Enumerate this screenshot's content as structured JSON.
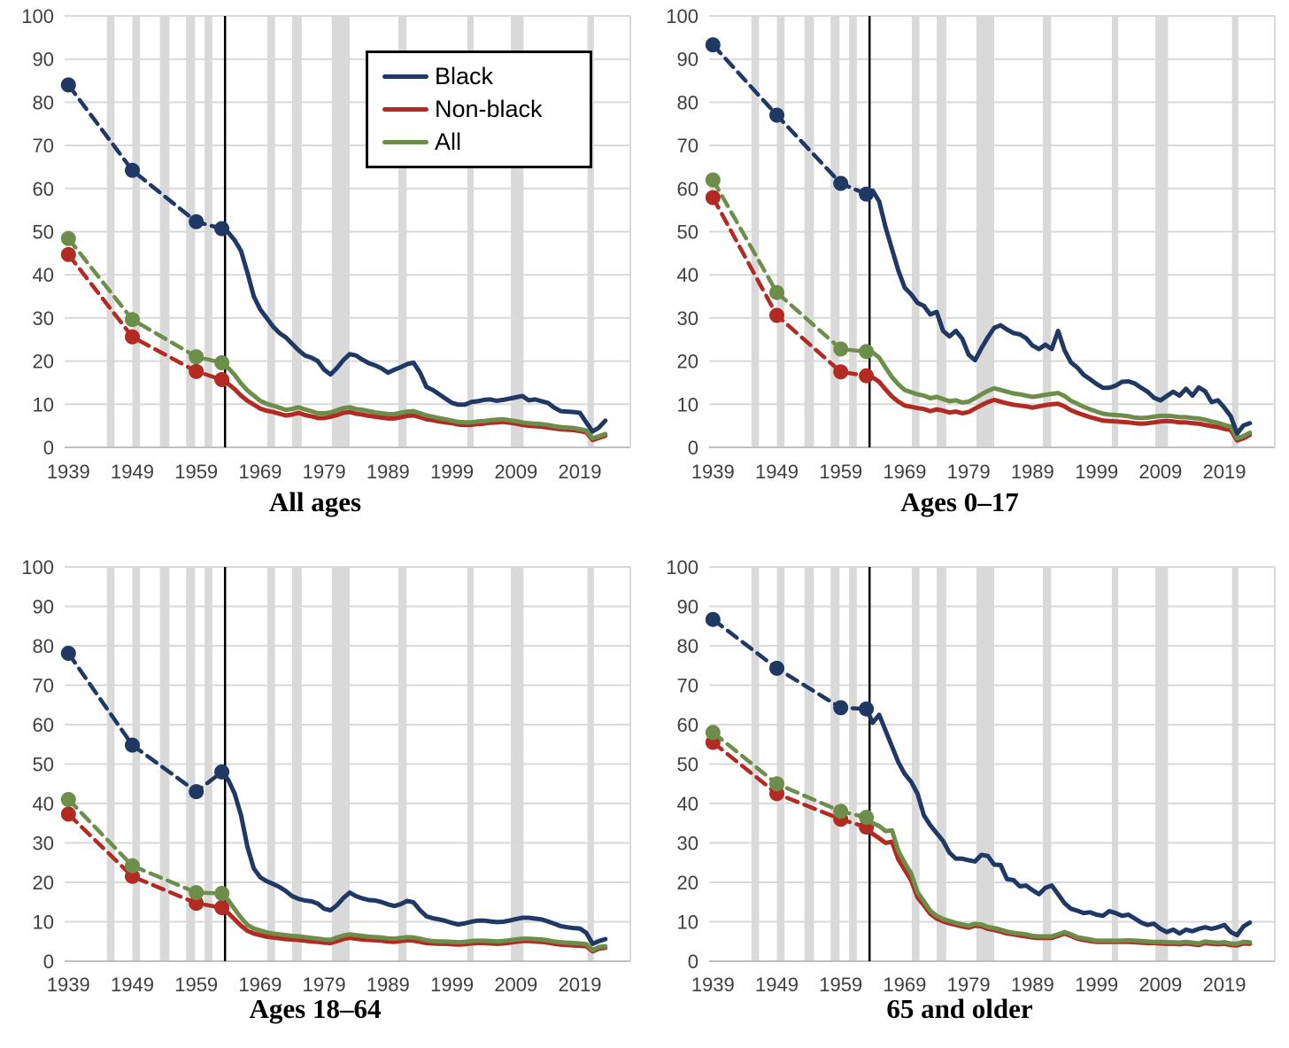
{
  "figure": {
    "background": "#ffffff"
  },
  "legend": {
    "items": [
      {
        "label": "Black",
        "series_key": "black",
        "color": "#1f3864"
      },
      {
        "label": "Non-black",
        "series_key": "nonblack",
        "color": "#b22a22"
      },
      {
        "label": "All",
        "series_key": "all",
        "color": "#6d8e4b"
      }
    ]
  },
  "chart_data": {
    "type": "line",
    "title": "",
    "xlabel": "",
    "ylabel": "",
    "x_domain": [
      1938.4,
      2026.9
    ],
    "y_domain": [
      0,
      100
    ],
    "x_ticks": [
      1939,
      1949,
      1959,
      1969,
      1979,
      1989,
      1999,
      2009,
      2019
    ],
    "y_ticks": [
      0,
      10,
      20,
      30,
      40,
      50,
      60,
      70,
      80,
      90,
      100
    ],
    "grid": true,
    "legend_position": "top-left panel, inside plot",
    "event_line_year": 1963.5,
    "recession_bands": [
      [
        1945.0,
        1946.2
      ],
      [
        1949.0,
        1950.2
      ],
      [
        1953.3,
        1954.8
      ],
      [
        1957.4,
        1958.8
      ],
      [
        1960.3,
        1961.5
      ],
      [
        1970.1,
        1971.3
      ],
      [
        1974.0,
        1975.5
      ],
      [
        1980.2,
        1983.0
      ],
      [
        1990.6,
        1991.9
      ],
      [
        2001.4,
        2002.4
      ],
      [
        2008.2,
        2010.2
      ],
      [
        2020.2,
        2021.2
      ]
    ],
    "census_years": [
      1939,
      1949,
      1959,
      1963
    ],
    "annual_start_year": 1963,
    "series_colors": {
      "black": "#1f3864",
      "nonblack": "#b22a22",
      "all": "#6d8e4b"
    },
    "style": {
      "grid_color": "#d9d9d9",
      "band_color": "#d9d9d9",
      "axis_line_color": "#bfbfbf",
      "event_line_color": "#000000"
    },
    "panels": [
      {
        "title": "All ages",
        "series": [
          {
            "name": "Black",
            "key": "black",
            "census": [
              84.0,
              64.2,
              52.3,
              50.7
            ],
            "annual": [
              50.7,
              49.8,
              48.0,
              45.5,
              40.5,
              35.0,
              32.0,
              30.0,
              28.0,
              26.5,
              25.5,
              24.0,
              22.5,
              21.3,
              20.8,
              20.0,
              18.0,
              16.9,
              18.4,
              20.2,
              21.6,
              21.3,
              20.3,
              19.5,
              19.0,
              18.3,
              17.3,
              18.0,
              18.6,
              19.3,
              19.6,
              17.3,
              14.0,
              13.3,
              12.3,
              11.3,
              10.3,
              9.9,
              9.9,
              10.5,
              10.7,
              11.0,
              11.1,
              10.8,
              11.0,
              11.3,
              11.6,
              11.9,
              10.9,
              11.1,
              10.7,
              10.3,
              9.2,
              8.4,
              8.3,
              8.2,
              8.0,
              5.8,
              3.7,
              4.6,
              6.2
            ]
          },
          {
            "name": "Non-black",
            "key": "nonblack",
            "census": [
              44.7,
              25.6,
              17.6,
              15.7
            ],
            "annual": [
              15.7,
              14.7,
              13.5,
              12.0,
              10.8,
              9.9,
              9.0,
              8.5,
              8.2,
              7.8,
              7.4,
              7.6,
              8.0,
              7.5,
              7.2,
              6.8,
              6.8,
              7.1,
              7.5,
              8.0,
              8.2,
              7.8,
              7.6,
              7.3,
              7.1,
              6.9,
              6.7,
              6.7,
              7.0,
              7.3,
              7.4,
              7.0,
              6.5,
              6.3,
              6.0,
              5.8,
              5.6,
              5.3,
              5.2,
              5.2,
              5.4,
              5.5,
              5.7,
              5.8,
              5.9,
              5.7,
              5.5,
              5.2,
              5.0,
              4.9,
              4.8,
              4.6,
              4.4,
              4.2,
              4.1,
              4.0,
              3.8,
              3.5,
              1.7,
              2.2,
              2.7
            ]
          },
          {
            "name": "All",
            "key": "all",
            "census": [
              48.4,
              29.6,
              21.0,
              19.6
            ],
            "annual": [
              19.6,
              18.4,
              16.8,
              14.8,
              13.2,
              12.0,
              10.8,
              10.1,
              9.7,
              9.2,
              8.7,
              8.9,
              9.3,
              8.8,
              8.4,
              7.9,
              7.9,
              8.1,
              8.6,
              9.1,
              9.3,
              8.9,
              8.7,
              8.4,
              8.1,
              7.9,
              7.7,
              7.7,
              8.0,
              8.3,
              8.4,
              7.9,
              7.4,
              7.1,
              6.8,
              6.5,
              6.2,
              5.9,
              5.8,
              5.8,
              6.0,
              6.1,
              6.3,
              6.4,
              6.5,
              6.3,
              6.1,
              5.8,
              5.6,
              5.5,
              5.4,
              5.2,
              4.9,
              4.7,
              4.6,
              4.5,
              4.2,
              3.9,
              2.1,
              2.6,
              3.1
            ]
          }
        ]
      },
      {
        "title": "Ages 0–17",
        "series": [
          {
            "name": "Black",
            "key": "black",
            "census": [
              93.3,
              77.0,
              61.2,
              58.7
            ],
            "annual": [
              58.7,
              59.5,
              57.0,
              51.0,
              46.0,
              41.0,
              37.0,
              35.5,
              33.5,
              32.8,
              30.8,
              31.4,
              27.0,
              25.7,
              27.0,
              25.2,
              21.5,
              20.2,
              23.0,
              25.5,
              27.7,
              28.3,
              27.3,
              26.5,
              26.2,
              25.3,
              23.6,
              22.8,
              23.8,
              22.8,
              27.0,
              22.5,
              19.7,
              18.5,
              16.8,
              15.8,
              14.7,
              13.8,
              13.8,
              14.3,
              15.2,
              15.3,
              14.8,
              13.8,
              12.9,
              11.5,
              10.9,
              11.9,
              12.9,
              12.0,
              13.6,
              12.0,
              13.9,
              13.0,
              10.5,
              10.9,
              9.2,
              7.2,
              3.2,
              5.1,
              5.6
            ]
          },
          {
            "name": "Non-black",
            "key": "nonblack",
            "census": [
              57.9,
              30.6,
              17.5,
              16.6
            ],
            "annual": [
              16.6,
              16.2,
              15.2,
              13.4,
              11.8,
              10.6,
              9.7,
              9.4,
              9.1,
              8.9,
              8.4,
              8.8,
              8.5,
              8.1,
              8.3,
              7.9,
              8.2,
              9.0,
              9.8,
              10.5,
              11.0,
              10.6,
              10.2,
              9.9,
              9.7,
              9.5,
              9.2,
              9.5,
              9.8,
              10.0,
              10.1,
              9.5,
              8.6,
              8.0,
              7.5,
              7.0,
              6.6,
              6.2,
              6.1,
              6.0,
              5.9,
              5.8,
              5.6,
              5.5,
              5.6,
              5.8,
              6.0,
              6.1,
              6.0,
              5.8,
              5.8,
              5.6,
              5.5,
              5.2,
              4.9,
              4.7,
              4.3,
              4.0,
              1.6,
              2.1,
              2.9
            ]
          },
          {
            "name": "All",
            "key": "all",
            "census": [
              62.0,
              35.9,
              22.8,
              22.2
            ],
            "annual": [
              22.2,
              22.0,
              20.8,
              18.5,
              16.3,
              14.6,
              13.3,
              12.8,
              12.3,
              12.0,
              11.4,
              11.7,
              11.2,
              10.7,
              10.9,
              10.4,
              10.6,
              11.4,
              12.3,
              13.1,
              13.7,
              13.3,
              12.9,
              12.5,
              12.3,
              12.0,
              11.7,
              11.9,
              12.2,
              12.4,
              12.6,
              11.9,
              10.8,
              10.1,
              9.4,
              8.8,
              8.3,
              7.8,
              7.6,
              7.5,
              7.4,
              7.2,
              6.9,
              6.8,
              6.9,
              7.1,
              7.3,
              7.3,
              7.2,
              7.0,
              7.0,
              6.8,
              6.7,
              6.4,
              6.0,
              5.7,
              5.2,
              4.8,
              2.1,
              2.6,
              3.4
            ]
          }
        ]
      },
      {
        "title": "Ages 18–64",
        "series": [
          {
            "name": "Black",
            "key": "black",
            "census": [
              78.1,
              54.8,
              43.0,
              48.0
            ],
            "annual": [
              48.0,
              46.0,
              42.5,
              37.0,
              29.0,
              23.5,
              21.3,
              20.3,
              19.6,
              18.8,
              17.8,
              16.5,
              15.8,
              15.4,
              15.2,
              14.6,
              13.3,
              12.9,
              14.2,
              16.0,
              17.4,
              16.5,
              15.9,
              15.5,
              15.4,
              15.0,
              14.4,
              14.0,
              14.5,
              15.3,
              14.9,
              12.9,
              11.4,
              10.9,
              10.6,
              10.2,
              9.7,
              9.3,
              9.6,
              10.0,
              10.3,
              10.3,
              10.1,
              9.9,
              10.0,
              10.3,
              10.7,
              11.0,
              11.0,
              10.8,
              10.6,
              10.1,
              9.5,
              8.9,
              8.6,
              8.4,
              8.3,
              7.2,
              4.4,
              5.1,
              5.6
            ]
          },
          {
            "name": "Non-black",
            "key": "nonblack",
            "census": [
              37.3,
              21.5,
              14.7,
              13.6
            ],
            "annual": [
              13.6,
              12.2,
              10.6,
              9.0,
              7.7,
              7.0,
              6.6,
              6.2,
              6.0,
              5.8,
              5.6,
              5.5,
              5.4,
              5.2,
              5.0,
              4.9,
              4.7,
              4.6,
              5.1,
              5.6,
              5.9,
              5.7,
              5.5,
              5.4,
              5.3,
              5.2,
              5.0,
              4.9,
              5.1,
              5.3,
              5.2,
              4.9,
              4.6,
              4.5,
              4.4,
              4.4,
              4.3,
              4.2,
              4.3,
              4.5,
              4.6,
              4.6,
              4.5,
              4.4,
              4.5,
              4.7,
              4.9,
              5.1,
              5.1,
              5.0,
              4.9,
              4.7,
              4.4,
              4.2,
              4.1,
              4.0,
              3.9,
              3.8,
              2.5,
              3.2,
              3.4
            ]
          },
          {
            "name": "All",
            "key": "all",
            "census": [
              41.0,
              24.2,
              17.4,
              17.2
            ],
            "annual": [
              17.2,
              15.5,
              13.2,
              11.0,
              9.2,
              8.3,
              7.8,
              7.3,
              7.0,
              6.8,
              6.6,
              6.4,
              6.3,
              6.1,
              5.9,
              5.7,
              5.5,
              5.4,
              6.0,
              6.5,
              6.8,
              6.6,
              6.4,
              6.2,
              6.1,
              6.0,
              5.8,
              5.7,
              5.9,
              6.1,
              6.0,
              5.7,
              5.3,
              5.1,
              5.0,
              5.0,
              4.9,
              4.8,
              4.9,
              5.1,
              5.2,
              5.2,
              5.1,
              5.0,
              5.1,
              5.3,
              5.5,
              5.7,
              5.7,
              5.6,
              5.5,
              5.3,
              5.0,
              4.8,
              4.7,
              4.6,
              4.5,
              4.3,
              2.8,
              3.6,
              3.8
            ]
          }
        ]
      },
      {
        "title": "65 and older",
        "series": [
          {
            "name": "Black",
            "key": "black",
            "census": [
              86.7,
              74.3,
              64.3,
              64.0
            ],
            "annual": [
              64.0,
              60.5,
              62.5,
              58.5,
              54.5,
              50.5,
              47.5,
              45.5,
              42.5,
              37.0,
              34.5,
              32.5,
              30.5,
              27.5,
              26.0,
              26.0,
              25.6,
              25.3,
              27.0,
              26.7,
              24.5,
              24.4,
              20.8,
              20.6,
              19.0,
              19.2,
              18.0,
              17.0,
              18.6,
              19.2,
              17.0,
              14.7,
              13.3,
              12.8,
              12.2,
              12.4,
              11.8,
              11.5,
              12.7,
              12.2,
              11.5,
              11.8,
              10.8,
              9.8,
              9.2,
              9.5,
              8.2,
              7.4,
              8.0,
              7.0,
              8.0,
              7.6,
              8.2,
              8.6,
              8.2,
              8.6,
              9.2,
              7.4,
              6.6,
              8.8,
              9.8
            ]
          },
          {
            "name": "Non-black",
            "key": "nonblack",
            "census": [
              55.5,
              42.5,
              36.0,
              34.0
            ],
            "annual": [
              34.0,
              32.3,
              31.2,
              30.0,
              30.3,
              25.8,
              23.2,
              20.5,
              16.2,
              14.2,
              12.0,
              10.8,
              10.1,
              9.6,
              9.2,
              8.8,
              8.5,
              9.0,
              8.8,
              8.2,
              7.9,
              7.5,
              7.0,
              6.8,
              6.5,
              6.3,
              6.0,
              5.9,
              5.9,
              5.9,
              6.4,
              7.0,
              6.4,
              5.7,
              5.4,
              5.1,
              4.9,
              4.9,
              4.9,
              4.9,
              4.9,
              4.9,
              4.8,
              4.7,
              4.6,
              4.6,
              4.5,
              4.4,
              4.4,
              4.3,
              4.5,
              4.3,
              4.1,
              4.6,
              4.4,
              4.3,
              4.4,
              4.1,
              4.0,
              4.5,
              4.4
            ]
          },
          {
            "name": "All",
            "key": "all",
            "census": [
              58.0,
              45.0,
              38.0,
              36.5
            ],
            "annual": [
              36.5,
              35.0,
              34.3,
              33.0,
              33.2,
              28.0,
              25.0,
              22.2,
              17.5,
              15.2,
              12.8,
              11.5,
              10.7,
              10.2,
              9.7,
              9.3,
              9.0,
              9.5,
              9.3,
              8.7,
              8.4,
              8.0,
              7.5,
              7.2,
              7.0,
              6.8,
              6.4,
              6.3,
              6.3,
              6.3,
              6.8,
              7.4,
              6.8,
              6.1,
              5.8,
              5.5,
              5.2,
              5.2,
              5.2,
              5.2,
              5.2,
              5.3,
              5.2,
              5.1,
              5.0,
              4.9,
              4.9,
              4.8,
              4.8,
              4.7,
              4.9,
              4.7,
              4.5,
              5.0,
              4.8,
              4.7,
              4.8,
              4.5,
              4.4,
              4.9,
              4.8
            ]
          }
        ]
      }
    ]
  }
}
